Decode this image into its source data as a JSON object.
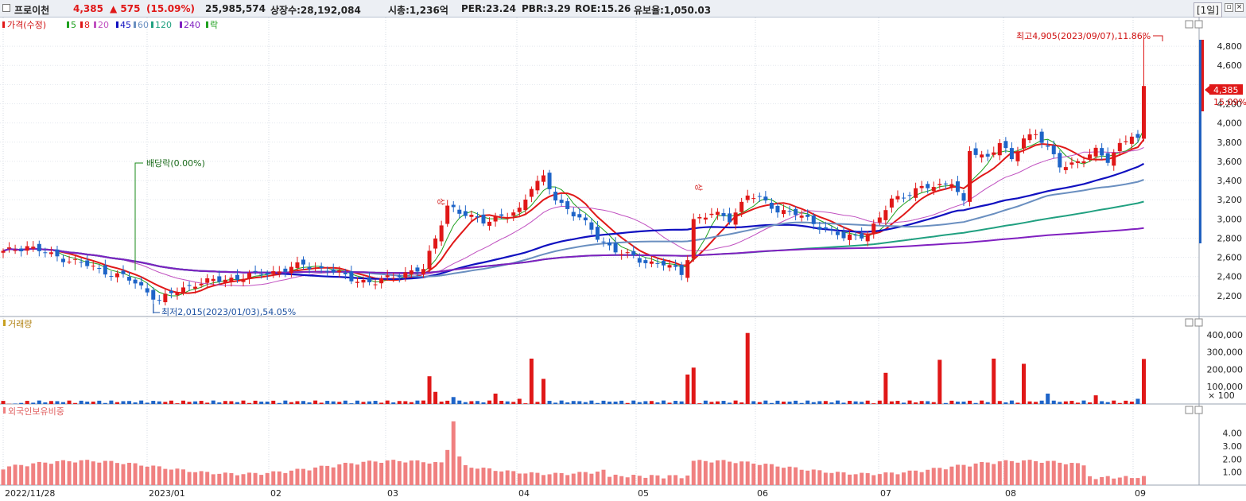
{
  "topbar": {
    "name": "프로이천",
    "price": "4,385",
    "change": "▲ 575",
    "change_pct": "(15.09%)",
    "volume": "25,985,574",
    "shares": "상장수:28,192,084",
    "mcap": "시총:1,236억",
    "per": "PER:23.24",
    "pbr": "PBR:3.29",
    "roe": "ROE:15.26",
    "float": "유보율:1,050.03",
    "period": "[1일]"
  },
  "legend": {
    "price": "가격(수정)",
    "ma": [
      "5",
      "8",
      "20",
      "45",
      "60",
      "120",
      "240"
    ],
    "ma_colors": [
      "#1ea01e",
      "#e01818",
      "#c050c0",
      "#1010c0",
      "#6a8fc0",
      "#20a080",
      "#8020c0"
    ],
    "last": "락"
  },
  "annotations": {
    "high": "최고4,905(2023/09/07),11.86%",
    "low": "최저2,015(2023/01/03),54.05%",
    "dividend": "배당락(0.00%)",
    "limit_up": "상"
  },
  "price_axis": {
    "ticks": [
      "4,800",
      "4,600",
      "4,200",
      "4,000",
      "3,800",
      "3,600",
      "3,400",
      "3,200",
      "3,000",
      "2,800",
      "2,600",
      "2,400",
      "2,200"
    ],
    "current": "4,385",
    "current_pct": "15.09%"
  },
  "volume_panel": {
    "label": "거래량",
    "ticks": [
      "400,000",
      "300,000",
      "200,000",
      "100,000"
    ],
    "unit": "× 100"
  },
  "foreign_panel": {
    "label": "외국인보유비중",
    "ticks": [
      "4.00",
      "3.00",
      "2.00",
      "1.00"
    ]
  },
  "x_axis": [
    "2022/11/28",
    "2023/01",
    "02",
    "03",
    "04",
    "05",
    "06",
    "07",
    "08",
    "09"
  ],
  "chart_data": {
    "type": "candlestick",
    "price_range": [
      2000,
      4950
    ],
    "volume_range": [
      0,
      450000
    ],
    "foreign_range": [
      0,
      5.5
    ],
    "high_point": {
      "date": "2023/09/07",
      "value": 4905
    },
    "low_point": {
      "date": "2023/01/03",
      "value": 2015
    },
    "anchors": [
      [
        0,
        2650
      ],
      [
        4,
        2720
      ],
      [
        8,
        2620
      ],
      [
        12,
        2560
      ],
      [
        16,
        2470
      ],
      [
        20,
        2400
      ],
      [
        24,
        2250
      ],
      [
        26,
        2150
      ],
      [
        28,
        2220
      ],
      [
        32,
        2330
      ],
      [
        36,
        2360
      ],
      [
        42,
        2420
      ],
      [
        46,
        2460
      ],
      [
        50,
        2520
      ],
      [
        54,
        2470
      ],
      [
        58,
        2380
      ],
      [
        62,
        2330
      ],
      [
        66,
        2430
      ],
      [
        70,
        2470
      ],
      [
        72,
        2800
      ],
      [
        74,
        3150
      ],
      [
        76,
        3050
      ],
      [
        80,
        2990
      ],
      [
        84,
        3020
      ],
      [
        86,
        3100
      ],
      [
        88,
        3350
      ],
      [
        90,
        3420
      ],
      [
        92,
        3200
      ],
      [
        96,
        3020
      ],
      [
        99,
        2800
      ],
      [
        102,
        2680
      ],
      [
        106,
        2560
      ],
      [
        110,
        2540
      ],
      [
        113,
        2420
      ],
      [
        114,
        2600
      ],
      [
        115,
        3000
      ],
      [
        118,
        3050
      ],
      [
        121,
        3000
      ],
      [
        124,
        3250
      ],
      [
        126,
        3200
      ],
      [
        129,
        3100
      ],
      [
        132,
        3050
      ],
      [
        136,
        2930
      ],
      [
        140,
        2800
      ],
      [
        144,
        2850
      ],
      [
        146,
        3000
      ],
      [
        148,
        3200
      ],
      [
        152,
        3300
      ],
      [
        156,
        3350
      ],
      [
        158,
        3400
      ],
      [
        160,
        3150
      ],
      [
        161,
        3700
      ],
      [
        164,
        3650
      ],
      [
        166,
        3800
      ],
      [
        168,
        3600
      ],
      [
        170,
        3850
      ],
      [
        172,
        3900
      ],
      [
        176,
        3550
      ],
      [
        180,
        3620
      ],
      [
        182,
        3700
      ],
      [
        184,
        3620
      ],
      [
        186,
        3780
      ],
      [
        188,
        3860
      ],
      [
        189,
        3810
      ],
      [
        190,
        4385
      ]
    ],
    "volume": [
      [
        0,
        18000
      ],
      [
        1,
        1000
      ],
      [
        2,
        2500
      ],
      [
        3,
        6000
      ],
      [
        70,
        20000
      ],
      [
        71,
        160000
      ],
      [
        72,
        70000
      ],
      [
        75,
        40000
      ],
      [
        82,
        60000
      ],
      [
        86,
        30000
      ],
      [
        88,
        262000
      ],
      [
        90,
        145000
      ],
      [
        114,
        170000
      ],
      [
        115,
        210000
      ],
      [
        124,
        410000
      ],
      [
        147,
        180000
      ],
      [
        156,
        255000
      ],
      [
        165,
        262000
      ],
      [
        170,
        232000
      ],
      [
        174,
        60000
      ],
      [
        182,
        50000
      ],
      [
        189,
        30000
      ],
      [
        190,
        260000
      ]
    ],
    "volume_unit": "× 100",
    "foreign_ratio_range": [
      0.4,
      4.9
    ]
  }
}
